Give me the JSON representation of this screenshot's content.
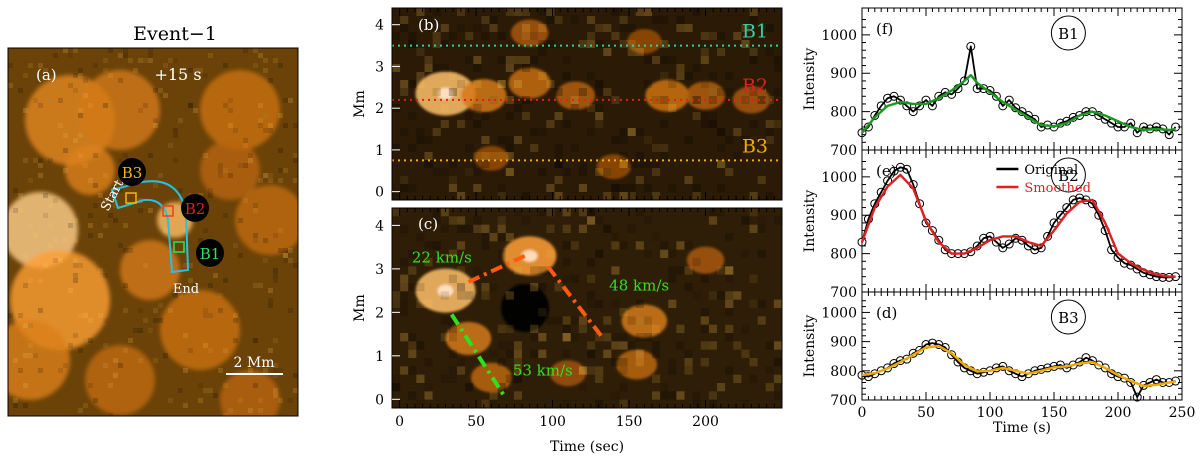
{
  "chart_data": [
    {
      "id": "a",
      "type": "image",
      "panel_label": "(a)",
      "title": "Event−1",
      "time_label": "+15 s",
      "scale_bar_label": "2 Mm",
      "slit_labels": {
        "start": "Start",
        "end": "End"
      },
      "boxes": [
        {
          "name": "B3",
          "color": "#f5b800"
        },
        {
          "name": "B2",
          "color": "#e02020"
        },
        {
          "name": "B1",
          "color": "#30e060"
        }
      ],
      "slit_color": "#27c0e0"
    },
    {
      "id": "b",
      "type": "heatmap",
      "panel_label": "(b)",
      "ylabel": "Mm",
      "ylim": [
        -0.2,
        4.4
      ],
      "yticks": [
        0,
        1,
        2,
        3,
        4
      ],
      "xlim": [
        -5,
        250
      ],
      "xticks": [
        0,
        50,
        100,
        150,
        200
      ],
      "show_xtick_labels": false,
      "lines": [
        {
          "name": "B1",
          "y": 3.5,
          "color": "#30d0a0"
        },
        {
          "name": "B2",
          "y": 2.2,
          "color": "#e02020"
        },
        {
          "name": "B3",
          "y": 0.75,
          "color": "#f0b000"
        }
      ],
      "blobs": [
        {
          "t": 30,
          "y": 2.35,
          "amp": 1.0
        },
        {
          "t": 55,
          "y": 2.3,
          "amp": 0.55
        },
        {
          "t": 85,
          "y": 2.6,
          "amp": 0.45
        },
        {
          "t": 85,
          "y": 3.8,
          "amp": 0.3
        },
        {
          "t": 115,
          "y": 2.3,
          "amp": 0.35
        },
        {
          "t": 175,
          "y": 2.3,
          "amp": 0.5
        },
        {
          "t": 200,
          "y": 2.3,
          "amp": 0.35
        },
        {
          "t": 230,
          "y": 2.2,
          "amp": 0.3
        },
        {
          "t": 160,
          "y": 3.6,
          "amp": 0.2
        },
        {
          "t": 60,
          "y": 0.8,
          "amp": 0.2
        },
        {
          "t": 140,
          "y": 0.6,
          "amp": 0.2
        }
      ]
    },
    {
      "id": "c",
      "type": "heatmap",
      "panel_label": "(c)",
      "ylabel": "Mm",
      "xlabel": "Time (sec)",
      "ylim": [
        -0.2,
        4.4
      ],
      "yticks": [
        0,
        1,
        2,
        3,
        4
      ],
      "xlim": [
        -5,
        250
      ],
      "xticks": [
        0,
        50,
        100,
        150,
        200
      ],
      "blobs": [
        {
          "t": 30,
          "y": 2.5,
          "amp": 1.0
        },
        {
          "t": 45,
          "y": 1.4,
          "amp": 0.55
        },
        {
          "t": 60,
          "y": 0.5,
          "amp": 0.4
        },
        {
          "t": 85,
          "y": 3.3,
          "amp": 0.8
        },
        {
          "t": 160,
          "y": 1.8,
          "amp": 0.55
        },
        {
          "t": 155,
          "y": 0.8,
          "amp": 0.4
        },
        {
          "t": 200,
          "y": 3.2,
          "amp": 0.3
        },
        {
          "t": 110,
          "y": 0.6,
          "amp": 0.25
        }
      ],
      "dark_spots": [
        {
          "t": 82,
          "y": 2.1,
          "amp": 0.95
        }
      ],
      "fits": [
        {
          "label": "22 km/s",
          "color": "#ff5a10",
          "t": [
            45,
            82
          ],
          "y": [
            2.7,
            3.3
          ],
          "label_t": 8,
          "label_y": 3.15
        },
        {
          "label": "48 km/s",
          "color": "#ff5a10",
          "t": [
            97,
            132
          ],
          "y": [
            3.05,
            1.45
          ],
          "label_t": 137,
          "label_y": 2.5
        },
        {
          "label": "53 km/s",
          "color": "#30e020",
          "t": [
            34,
            68
          ],
          "y": [
            1.95,
            0.1
          ],
          "label_t": 74,
          "label_y": 0.55
        }
      ]
    },
    {
      "id": "f",
      "type": "line",
      "panel_label": "(f)",
      "box_label": "B1",
      "ylabel": "Intensity",
      "ylim": [
        700,
        1070
      ],
      "yticks": [
        700,
        800,
        900,
        1000
      ],
      "xlim": [
        0,
        250
      ],
      "xticks": [
        0,
        50,
        100,
        150,
        200,
        250
      ],
      "show_xtick_labels": false,
      "series": [
        {
          "name": "Original",
          "color": "#000000",
          "markers": true,
          "x": [
            0,
            5,
            10,
            15,
            20,
            25,
            30,
            35,
            40,
            45,
            50,
            55,
            60,
            65,
            70,
            75,
            80,
            85,
            90,
            95,
            100,
            105,
            110,
            115,
            120,
            125,
            130,
            135,
            140,
            145,
            150,
            155,
            160,
            165,
            170,
            175,
            180,
            185,
            190,
            195,
            200,
            205,
            210,
            215,
            220,
            225,
            230,
            235,
            240,
            245
          ],
          "y": [
            745,
            760,
            790,
            815,
            835,
            840,
            830,
            815,
            800,
            815,
            830,
            815,
            840,
            850,
            845,
            860,
            880,
            970,
            860,
            860,
            855,
            840,
            815,
            830,
            810,
            800,
            790,
            780,
            760,
            765,
            760,
            770,
            775,
            785,
            790,
            800,
            800,
            790,
            780,
            770,
            760,
            760,
            770,
            745,
            760,
            755,
            760,
            755,
            740,
            760
          ]
        },
        {
          "name": "Smoothed",
          "color": "#1a9a20",
          "markers": false,
          "x": [
            0,
            10,
            20,
            30,
            40,
            50,
            60,
            70,
            80,
            85,
            90,
            100,
            110,
            120,
            130,
            140,
            150,
            160,
            170,
            180,
            190,
            200,
            210,
            220,
            230,
            240,
            245
          ],
          "y": [
            745,
            785,
            815,
            825,
            820,
            820,
            835,
            855,
            880,
            895,
            875,
            850,
            825,
            805,
            785,
            765,
            762,
            770,
            790,
            800,
            790,
            775,
            760,
            752,
            755,
            752,
            755
          ]
        }
      ]
    },
    {
      "id": "e",
      "type": "line",
      "panel_label": "(e)",
      "box_label": "B2",
      "ylabel": "Intensity",
      "ylim": [
        700,
        1070
      ],
      "yticks": [
        700,
        800,
        900,
        1000
      ],
      "xlim": [
        0,
        250
      ],
      "xticks": [
        0,
        50,
        100,
        150,
        200,
        250
      ],
      "show_xtick_labels": false,
      "legend": {
        "position": "top-center",
        "entries": [
          "Original",
          "Smoothed"
        ]
      },
      "series": [
        {
          "name": "Original",
          "color": "#000000",
          "markers": true,
          "x": [
            0,
            5,
            10,
            15,
            20,
            25,
            30,
            35,
            40,
            45,
            50,
            55,
            60,
            65,
            70,
            75,
            80,
            85,
            90,
            95,
            100,
            105,
            110,
            115,
            120,
            125,
            130,
            135,
            140,
            145,
            150,
            155,
            160,
            165,
            170,
            175,
            180,
            185,
            190,
            195,
            200,
            205,
            210,
            215,
            220,
            225,
            230,
            235,
            240,
            245
          ],
          "y": [
            830,
            890,
            930,
            960,
            990,
            1015,
            1025,
            1020,
            980,
            930,
            880,
            860,
            835,
            810,
            800,
            800,
            800,
            805,
            820,
            840,
            845,
            830,
            815,
            825,
            840,
            835,
            820,
            810,
            815,
            845,
            880,
            900,
            920,
            940,
            945,
            940,
            930,
            900,
            860,
            810,
            790,
            775,
            770,
            760,
            750,
            745,
            740,
            738,
            738,
            740
          ]
        },
        {
          "name": "Smoothed",
          "color": "#e02020",
          "markers": false,
          "x": [
            0,
            10,
            20,
            30,
            40,
            50,
            60,
            70,
            80,
            90,
            100,
            110,
            120,
            130,
            140,
            150,
            160,
            170,
            180,
            190,
            200,
            210,
            220,
            230,
            240,
            245
          ],
          "y": [
            830,
            920,
            975,
            1005,
            970,
            885,
            830,
            800,
            800,
            815,
            835,
            845,
            845,
            830,
            820,
            860,
            905,
            935,
            940,
            880,
            800,
            775,
            758,
            745,
            740,
            740
          ]
        }
      ]
    },
    {
      "id": "d",
      "type": "line",
      "panel_label": "(d)",
      "box_label": "B3",
      "ylabel": "Intensity",
      "xlabel": "Time (s)",
      "ylim": [
        700,
        1070
      ],
      "yticks": [
        700,
        800,
        900,
        1000
      ],
      "xlim": [
        0,
        250
      ],
      "xticks": [
        0,
        50,
        100,
        150,
        200,
        250
      ],
      "series": [
        {
          "name": "Original",
          "color": "#000000",
          "markers": true,
          "x": [
            0,
            5,
            10,
            15,
            20,
            25,
            30,
            35,
            40,
            45,
            50,
            55,
            60,
            65,
            70,
            75,
            80,
            85,
            90,
            95,
            100,
            105,
            110,
            115,
            120,
            125,
            130,
            135,
            140,
            145,
            150,
            155,
            160,
            165,
            170,
            175,
            180,
            185,
            190,
            195,
            200,
            205,
            210,
            215,
            220,
            225,
            230,
            235,
            240,
            245
          ],
          "y": [
            785,
            780,
            790,
            800,
            810,
            825,
            835,
            840,
            860,
            870,
            890,
            895,
            890,
            880,
            855,
            830,
            810,
            800,
            790,
            795,
            800,
            810,
            815,
            800,
            790,
            780,
            790,
            800,
            805,
            810,
            815,
            820,
            810,
            820,
            830,
            845,
            835,
            820,
            810,
            790,
            780,
            775,
            760,
            710,
            750,
            760,
            770,
            760,
            760,
            765
          ]
        },
        {
          "name": "Smoothed",
          "color": "#f0a800",
          "markers": false,
          "x": [
            0,
            10,
            20,
            30,
            40,
            50,
            60,
            70,
            80,
            90,
            100,
            110,
            120,
            130,
            140,
            150,
            160,
            170,
            180,
            190,
            200,
            210,
            220,
            230,
            240,
            245
          ],
          "y": [
            785,
            792,
            808,
            830,
            855,
            880,
            885,
            860,
            820,
            798,
            800,
            810,
            800,
            790,
            800,
            812,
            815,
            825,
            830,
            810,
            785,
            765,
            748,
            752,
            760,
            763
          ]
        }
      ]
    }
  ]
}
